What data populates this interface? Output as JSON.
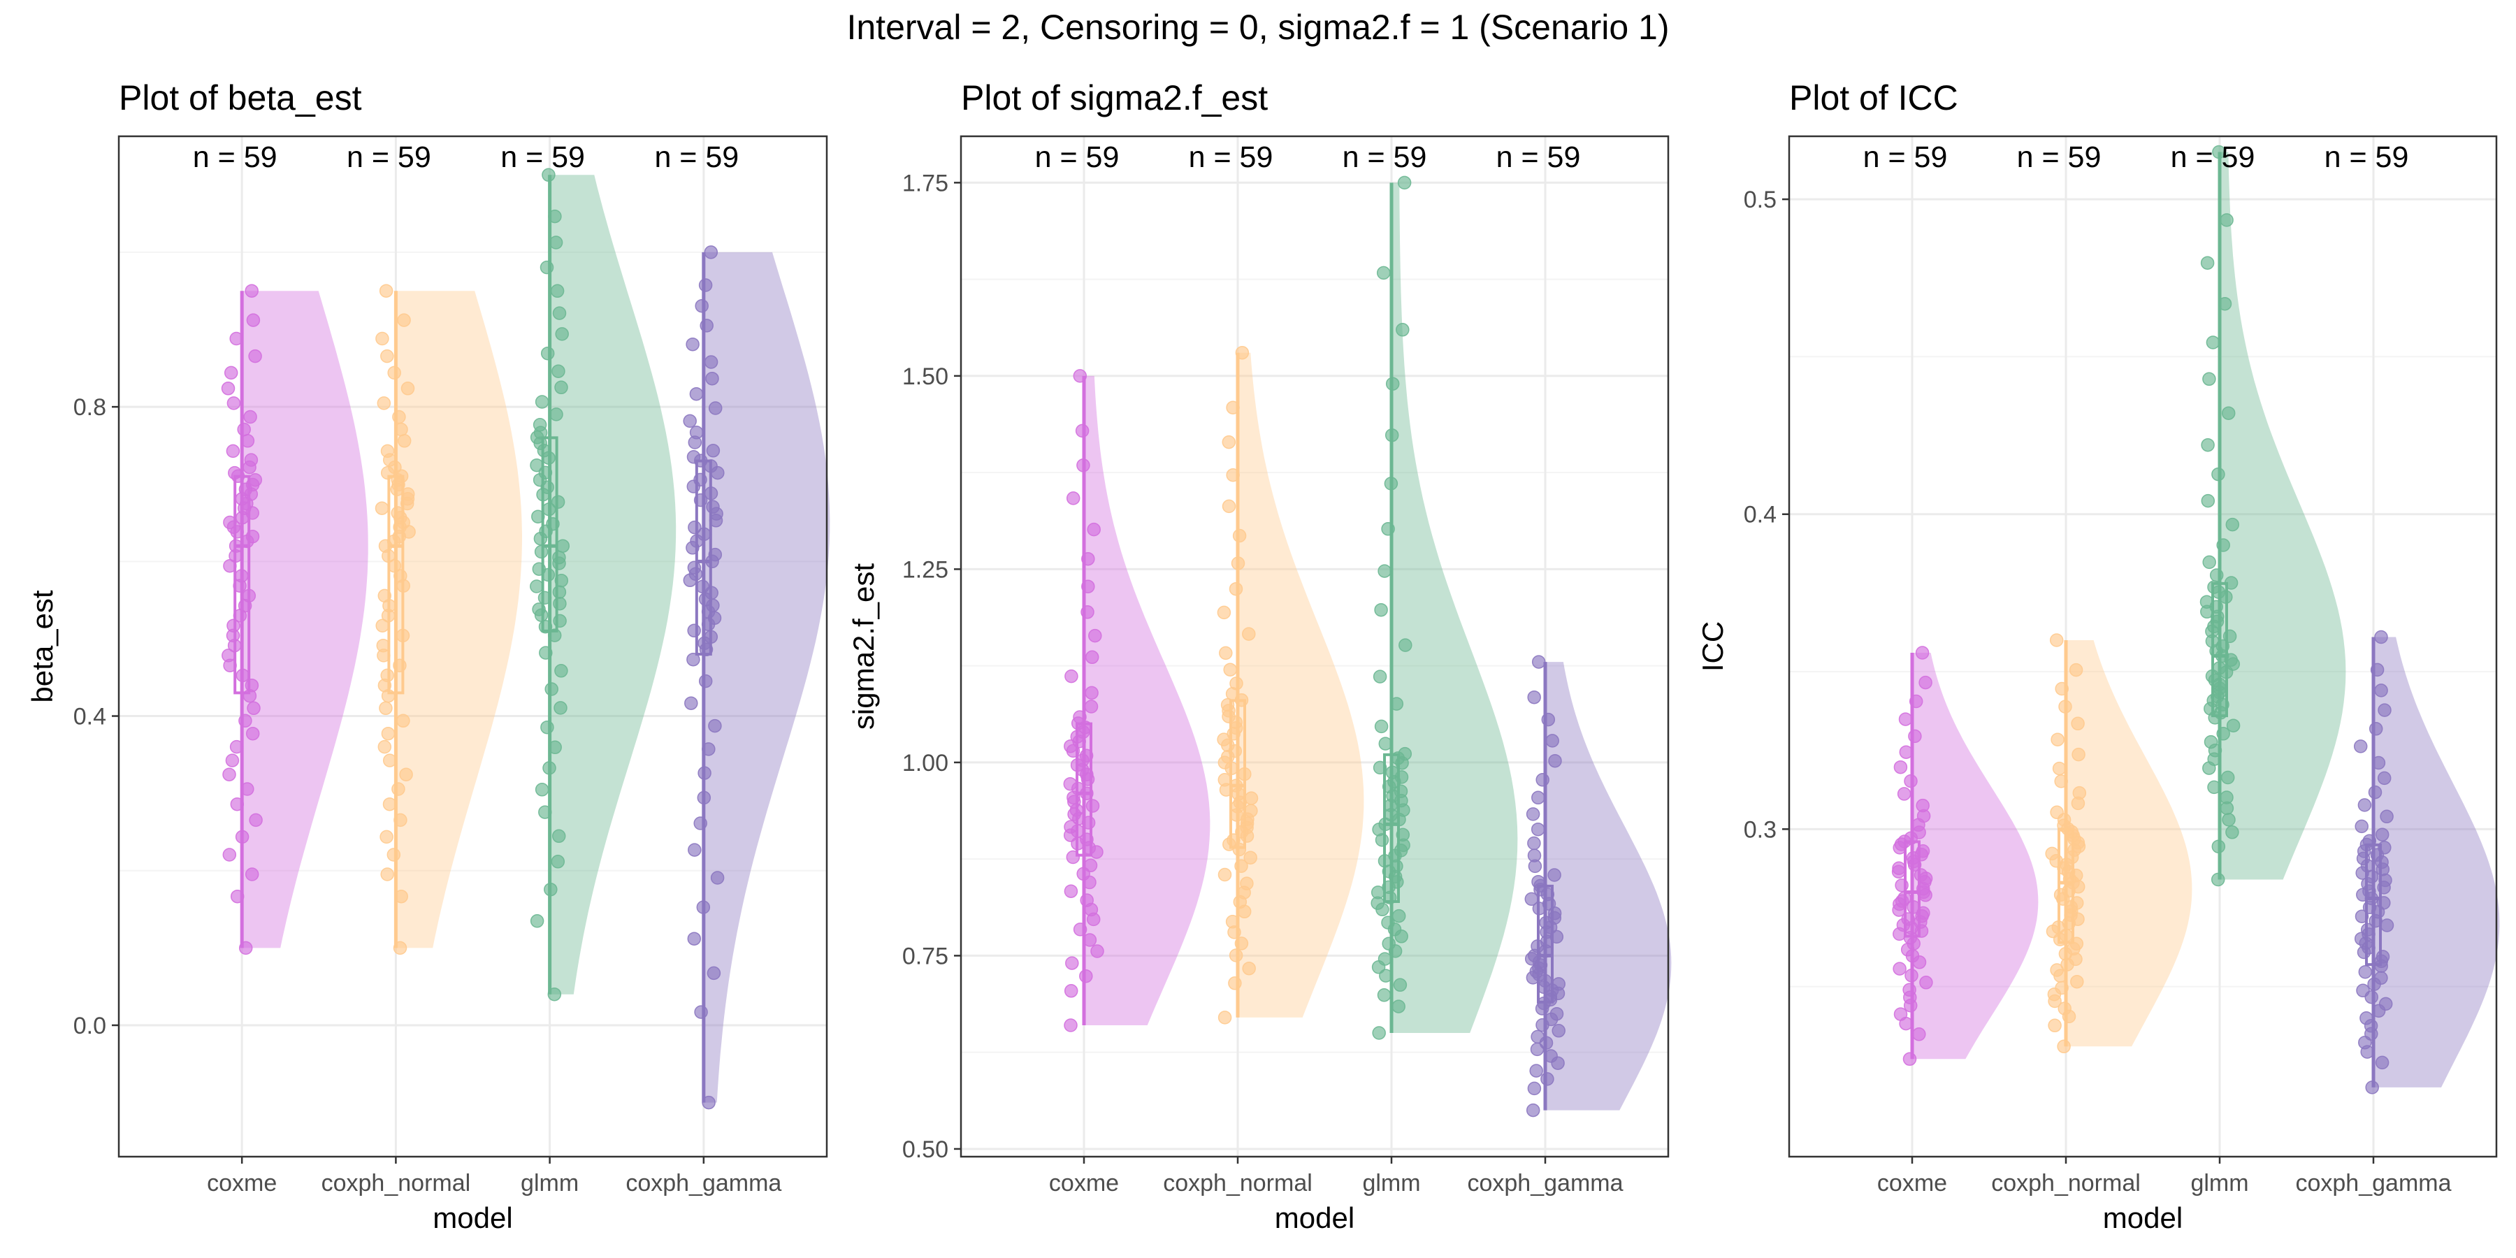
{
  "suptitle": "Interval = 2, Censoring = 0, sigma2.f = 1 (Scenario 1)",
  "colors": {
    "coxme": "#D36FDE",
    "coxph_normal": "#FFCA8E",
    "glmm": "#6CB792",
    "coxph_gamma": "#8B77C0",
    "panel_border": "#333333",
    "grid_major": "#EBEBEB",
    "grid_minor": "#F4F4F4",
    "tick_text": "#4D4D4D"
  },
  "chart_data": [
    {
      "type": "raincloud",
      "title": "Plot of beta_est",
      "xlabel": "model",
      "ylabel": "beta_est",
      "categories": [
        "coxme",
        "coxph_normal",
        "glmm",
        "coxph_gamma"
      ],
      "counts": [
        "n = 59",
        "n = 59",
        "n = 59",
        "n = 59"
      ],
      "ylim": [
        -0.17,
        1.15
      ],
      "yticks": [
        0.0,
        0.4,
        0.8
      ],
      "ytick_labels": [
        "0.0",
        "0.4",
        "0.8"
      ],
      "grid": true,
      "series": [
        {
          "model": "coxme",
          "min": 0.1,
          "q1": 0.43,
          "median": 0.62,
          "q3": 0.71,
          "max": 0.95,
          "density_peak": 0.62
        },
        {
          "model": "coxph_normal",
          "min": 0.1,
          "q1": 0.43,
          "median": 0.62,
          "q3": 0.71,
          "max": 0.95,
          "density_peak": 0.63
        },
        {
          "model": "glmm",
          "min": 0.04,
          "q1": 0.51,
          "median": 0.62,
          "q3": 0.76,
          "max": 1.1,
          "density_peak": 0.64
        },
        {
          "model": "coxph_gamma",
          "min": -0.1,
          "q1": 0.48,
          "median": 0.6,
          "q3": 0.73,
          "max": 1.0,
          "density_peak": 0.65
        }
      ]
    },
    {
      "type": "raincloud",
      "title": "Plot of sigma2.f_est",
      "xlabel": "model",
      "ylabel": "sigma2.f_est",
      "categories": [
        "coxme",
        "coxph_normal",
        "glmm",
        "coxph_gamma"
      ],
      "counts": [
        "n = 59",
        "n = 59",
        "n = 59",
        "n = 59"
      ],
      "ylim": [
        0.49,
        1.81
      ],
      "yticks": [
        0.5,
        0.75,
        1.0,
        1.25,
        1.5,
        1.75
      ],
      "ytick_labels": [
        "0.50",
        "0.75",
        "1.00",
        "1.25",
        "1.50",
        "1.75"
      ],
      "grid": true,
      "series": [
        {
          "model": "coxme",
          "min": 0.66,
          "q1": 0.88,
          "median": 0.96,
          "q3": 1.05,
          "max": 1.5,
          "density_peak": 0.92
        },
        {
          "model": "coxph_normal",
          "min": 0.67,
          "q1": 0.89,
          "median": 0.97,
          "q3": 1.08,
          "max": 1.53,
          "density_peak": 0.95
        },
        {
          "model": "glmm",
          "min": 0.65,
          "q1": 0.82,
          "median": 0.92,
          "q3": 1.01,
          "max": 1.75,
          "density_peak": 0.9
        },
        {
          "model": "coxph_gamma",
          "min": 0.55,
          "q1": 0.69,
          "median": 0.75,
          "q3": 0.84,
          "max": 1.13,
          "density_peak": 0.74
        }
      ]
    },
    {
      "type": "raincloud",
      "title": "Plot of ICC",
      "xlabel": "model",
      "ylabel": "ICC",
      "categories": [
        "coxme",
        "coxph_normal",
        "glmm",
        "coxph_gamma"
      ],
      "counts": [
        "n = 59",
        "n = 59",
        "n = 59",
        "n = 59"
      ],
      "ylim": [
        0.196,
        0.52
      ],
      "yticks": [
        0.3,
        0.4,
        0.5
      ],
      "ytick_labels": [
        "0.3",
        "0.4",
        "0.5"
      ],
      "grid": true,
      "series": [
        {
          "model": "coxme",
          "min": 0.227,
          "q1": 0.266,
          "median": 0.28,
          "q3": 0.296,
          "max": 0.356,
          "density_peak": 0.277
        },
        {
          "model": "coxph_normal",
          "min": 0.231,
          "q1": 0.264,
          "median": 0.283,
          "q3": 0.3,
          "max": 0.36,
          "density_peak": 0.281
        },
        {
          "model": "glmm",
          "min": 0.284,
          "q1": 0.336,
          "median": 0.355,
          "q3": 0.378,
          "max": 0.515,
          "density_peak": 0.35
        },
        {
          "model": "coxph_gamma",
          "min": 0.218,
          "q1": 0.257,
          "median": 0.278,
          "q3": 0.295,
          "max": 0.361,
          "density_peak": 0.27
        }
      ]
    }
  ]
}
